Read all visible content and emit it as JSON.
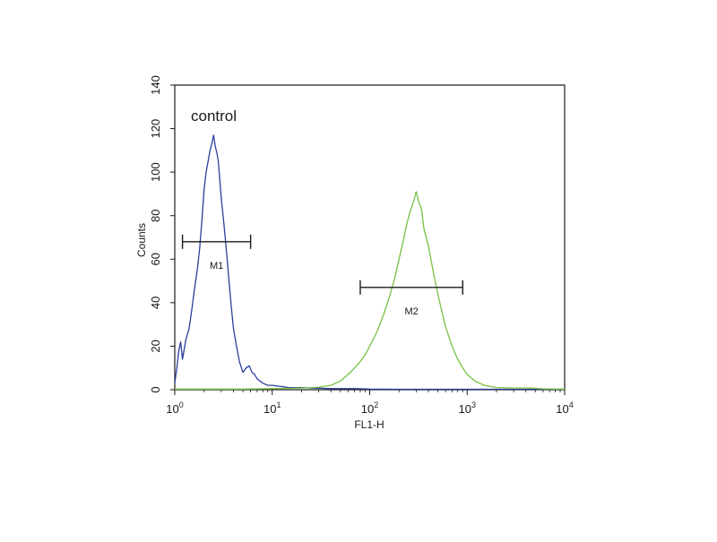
{
  "chart_data": {
    "type": "line",
    "annotation": "control",
    "xlabel": "FL1-H",
    "ylabel": "Counts",
    "xscale": "log",
    "xlim": [
      1,
      10000
    ],
    "ylim": [
      0,
      140
    ],
    "x_tick_labels": [
      {
        "base": "10",
        "exp": "0"
      },
      {
        "base": "10",
        "exp": "1"
      },
      {
        "base": "10",
        "exp": "2"
      },
      {
        "base": "10",
        "exp": "3"
      },
      {
        "base": "10",
        "exp": "4"
      }
    ],
    "x_tick_values": [
      1,
      10,
      100,
      1000,
      10000
    ],
    "y_ticks": [
      0,
      20,
      40,
      60,
      80,
      100,
      120,
      140
    ],
    "grid": false,
    "legend": "none",
    "series": [
      {
        "color": "#2b3f9a",
        "points": [
          [
            1.0,
            3
          ],
          [
            1.05,
            10
          ],
          [
            1.1,
            18
          ],
          [
            1.15,
            22
          ],
          [
            1.2,
            14
          ],
          [
            1.3,
            23
          ],
          [
            1.4,
            28
          ],
          [
            1.5,
            37
          ],
          [
            1.6,
            47
          ],
          [
            1.7,
            55
          ],
          [
            1.8,
            65
          ],
          [
            1.9,
            78
          ],
          [
            2.0,
            92
          ],
          [
            2.1,
            100
          ],
          [
            2.2,
            105
          ],
          [
            2.3,
            110
          ],
          [
            2.4,
            113
          ],
          [
            2.5,
            117
          ],
          [
            2.6,
            112
          ],
          [
            2.7,
            109
          ],
          [
            2.8,
            105
          ],
          [
            2.9,
            96
          ],
          [
            3.0,
            88
          ],
          [
            3.2,
            76
          ],
          [
            3.4,
            63
          ],
          [
            3.6,
            50
          ],
          [
            3.8,
            38
          ],
          [
            4.0,
            28
          ],
          [
            4.3,
            20
          ],
          [
            4.6,
            13
          ],
          [
            5.0,
            8
          ],
          [
            5.4,
            10
          ],
          [
            5.8,
            11
          ],
          [
            6.2,
            8
          ],
          [
            6.6,
            7
          ],
          [
            7.0,
            5
          ],
          [
            8.0,
            3
          ],
          [
            9.0,
            2
          ],
          [
            10,
            2
          ],
          [
            15,
            1
          ],
          [
            20,
            1
          ],
          [
            40,
            0.5
          ],
          [
            70,
            0.5
          ],
          [
            100,
            0.3
          ],
          [
            200,
            0.2
          ],
          [
            1000,
            0.2
          ],
          [
            10000,
            0.2
          ]
        ]
      },
      {
        "color": "#7ac143",
        "points": [
          [
            1.0,
            0.3
          ],
          [
            5,
            0.3
          ],
          [
            10,
            0.5
          ],
          [
            20,
            0.8
          ],
          [
            30,
            1.2
          ],
          [
            40,
            2
          ],
          [
            50,
            4
          ],
          [
            60,
            7
          ],
          [
            70,
            10
          ],
          [
            80,
            13
          ],
          [
            90,
            16
          ],
          [
            100,
            20
          ],
          [
            120,
            27
          ],
          [
            140,
            35
          ],
          [
            160,
            43
          ],
          [
            180,
            51
          ],
          [
            200,
            60
          ],
          [
            220,
            68
          ],
          [
            240,
            76
          ],
          [
            260,
            82
          ],
          [
            280,
            86
          ],
          [
            300,
            91
          ],
          [
            320,
            86
          ],
          [
            340,
            83
          ],
          [
            360,
            74
          ],
          [
            400,
            66
          ],
          [
            450,
            54
          ],
          [
            500,
            44
          ],
          [
            550,
            36
          ],
          [
            600,
            29
          ],
          [
            700,
            20
          ],
          [
            800,
            14
          ],
          [
            900,
            10
          ],
          [
            1000,
            7
          ],
          [
            1200,
            4
          ],
          [
            1500,
            2
          ],
          [
            2000,
            1
          ],
          [
            3000,
            0.8
          ],
          [
            4500,
            0.8
          ],
          [
            6000,
            0.4
          ],
          [
            10000,
            0.3
          ]
        ]
      }
    ],
    "markers": [
      {
        "label": "M1",
        "x_start": 1.2,
        "x_end": 6.0,
        "y": 68
      },
      {
        "label": "M2",
        "x_start": 80,
        "x_end": 900,
        "y": 47
      }
    ]
  }
}
